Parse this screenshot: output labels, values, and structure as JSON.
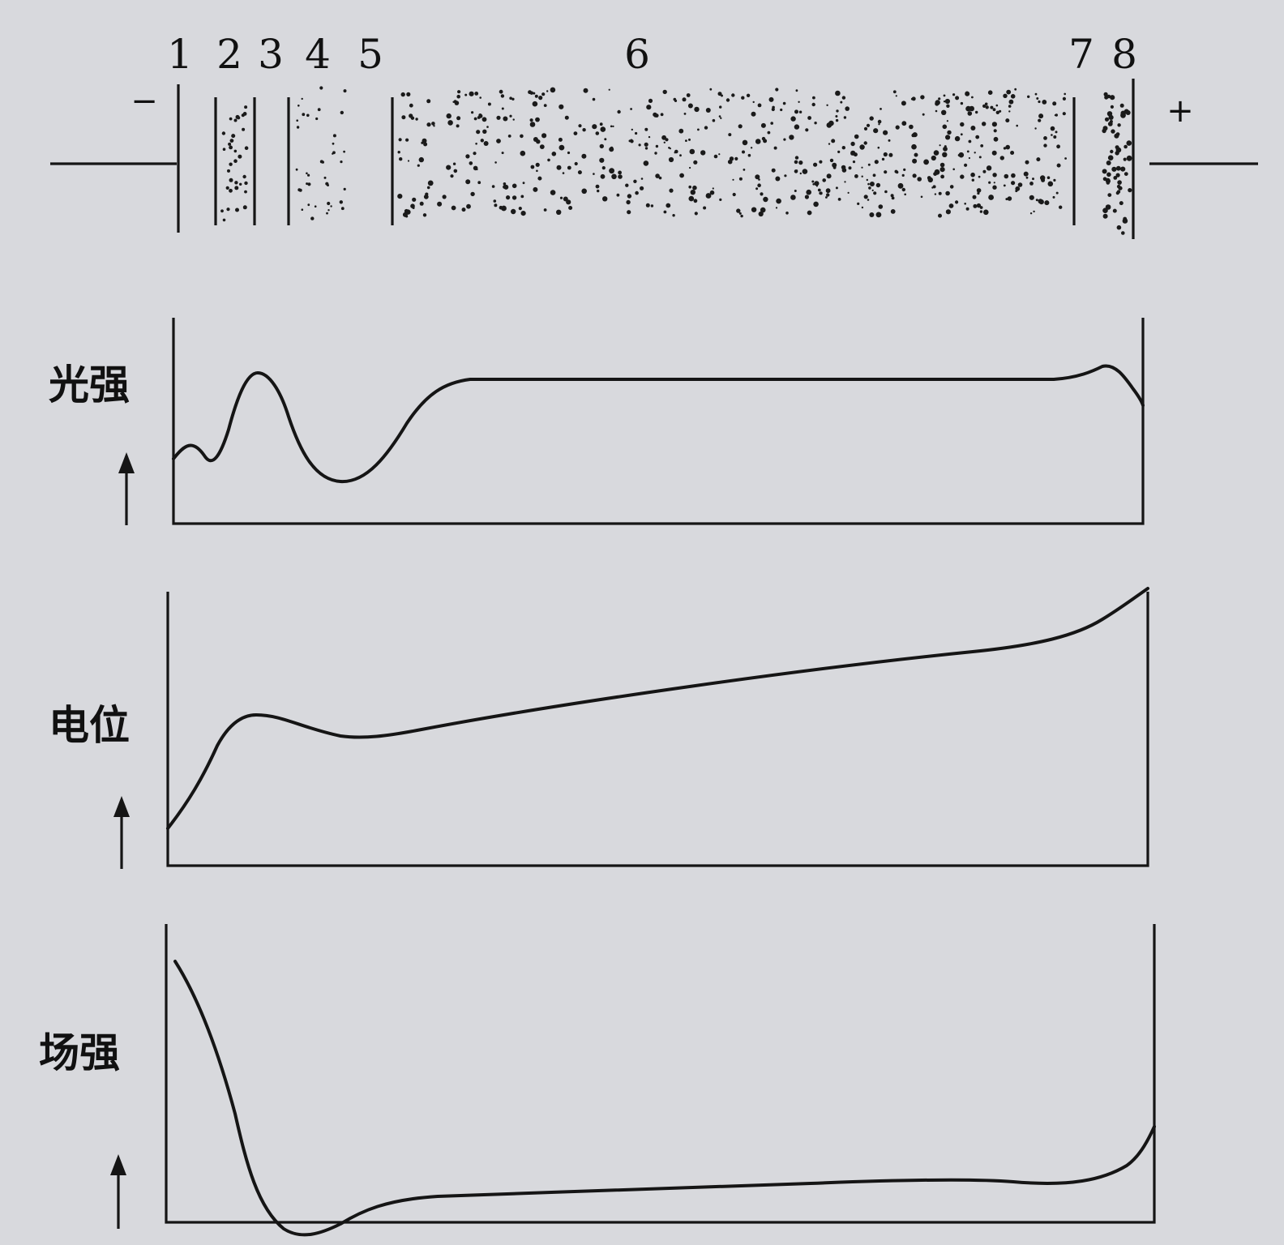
{
  "discharge_tube": {
    "region_numbers": [
      "1",
      "2",
      "3",
      "4",
      "5",
      "6",
      "7",
      "8"
    ],
    "cathode_sign": "−",
    "anode_sign": "+"
  },
  "graphs": [
    {
      "id": "light",
      "label": "光强",
      "arrow": "↑"
    },
    {
      "id": "potential",
      "label": "电位",
      "arrow": "↑"
    },
    {
      "id": "field",
      "label": "场强",
      "arrow": "↑"
    }
  ],
  "colors": {
    "background": "#d8d9dd",
    "ink": "#151515"
  }
}
